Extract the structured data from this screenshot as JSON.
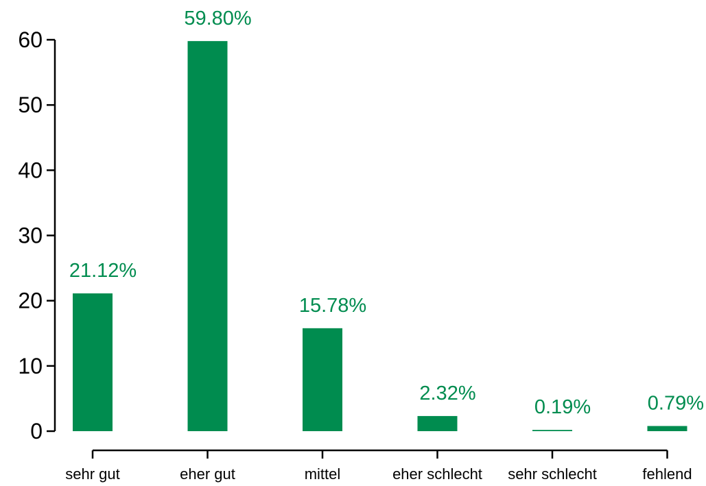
{
  "chart_data": {
    "type": "bar",
    "title": "",
    "xlabel": "",
    "ylabel": "",
    "categories": [
      "sehr gut",
      "eher gut",
      "mittel",
      "eher schlecht",
      "sehr schlecht",
      "fehlend"
    ],
    "values": [
      21.12,
      59.8,
      15.78,
      2.32,
      0.19,
      0.79
    ],
    "value_labels": [
      "21.12%",
      "59.80%",
      "15.78%",
      "2.32%",
      "0.19%",
      "0.79%"
    ],
    "ylim": [
      0,
      60
    ],
    "yticks": [
      0,
      10,
      20,
      30,
      40,
      50,
      60
    ],
    "ytick_labels": [
      "0",
      "10",
      "20",
      "30",
      "40",
      "50",
      "60"
    ],
    "grid": false,
    "legend": "none",
    "bar_color": "#008C4F",
    "label_color": "#008C4F"
  }
}
